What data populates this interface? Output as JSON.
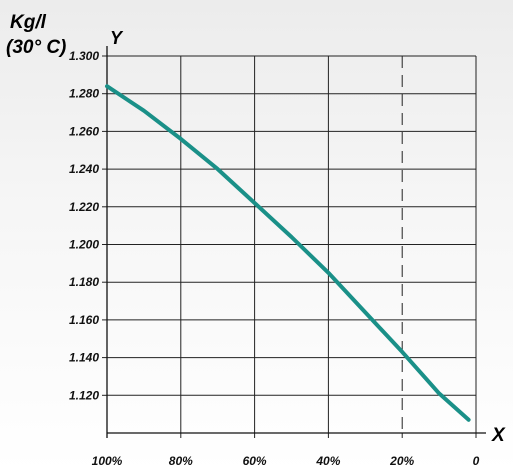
{
  "chart_data": {
    "type": "line",
    "ylabel_unit": "Kg/l",
    "ylabel_temp": "(30° C)",
    "y_axis_letter": "Y",
    "x_axis_letter": "X",
    "x_tick_labels": [
      "100%",
      "80%",
      "60%",
      "40%",
      "20%",
      "0"
    ],
    "x_ticks": [
      100,
      80,
      60,
      40,
      20,
      0
    ],
    "y_tick_labels": [
      "1.300",
      "1.280",
      "1.260",
      "1.240",
      "1.220",
      "1.200",
      "1.180",
      "1.160",
      "1.140",
      "1.120"
    ],
    "y_ticks": [
      1.3,
      1.28,
      1.26,
      1.24,
      1.22,
      1.2,
      1.18,
      1.16,
      1.14,
      1.12
    ],
    "xlim": [
      100,
      0
    ],
    "ylim": [
      1.1,
      1.3
    ],
    "grid": true,
    "dashed_reference_x": 20,
    "series": [
      {
        "x": [
          100,
          90,
          80,
          70,
          60,
          50,
          40,
          30,
          20,
          10,
          2
        ],
        "y": [
          1.284,
          1.271,
          1.256,
          1.24,
          1.222,
          1.204,
          1.185,
          1.164,
          1.143,
          1.121,
          1.107
        ],
        "color": "#1a9088"
      }
    ]
  }
}
